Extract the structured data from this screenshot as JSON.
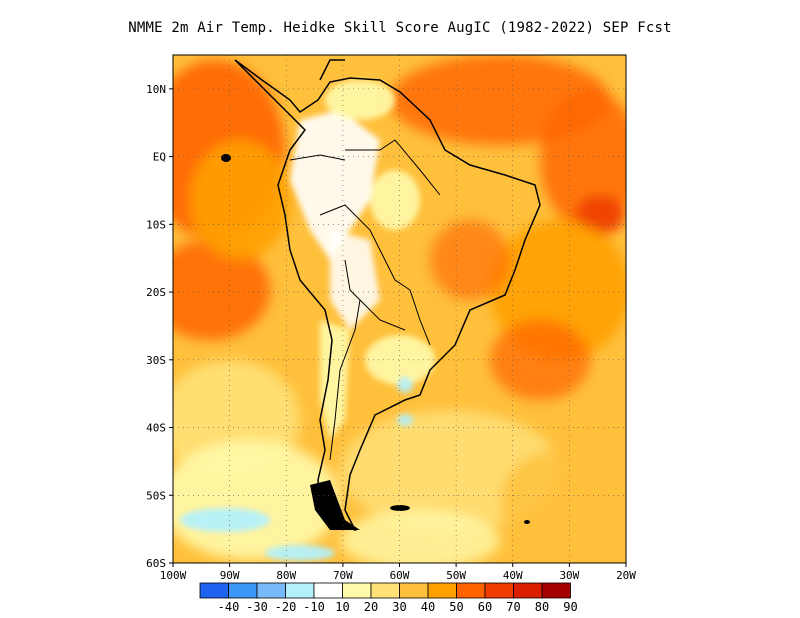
{
  "title": "NMME  2m Air Temp. Heidke Skill Score AugIC (1982-2022) SEP Fcst",
  "map": {
    "lon_range": [
      -100,
      -20
    ],
    "lat_range": [
      -60,
      15
    ],
    "lat_ticks": [
      "10N",
      "EQ",
      "10S",
      "20S",
      "30S",
      "40S",
      "50S",
      "60S"
    ],
    "lon_ticks": [
      "100W",
      "90W",
      "80W",
      "70W",
      "60W",
      "50W",
      "40W",
      "30W",
      "20W"
    ],
    "grid": "dotted",
    "coastline_color": "#000000"
  },
  "colorbar": {
    "labels": [
      "-40",
      "-30",
      "-20",
      "-10",
      "10",
      "20",
      "30",
      "40",
      "50",
      "60",
      "70",
      "80",
      "90"
    ],
    "colors": [
      "#1e64f0",
      "#3c96f5",
      "#78b9fa",
      "#b4f0fa",
      "#ffffff",
      "#fffaaa",
      "#ffe178",
      "#ffc03c",
      "#ffa000",
      "#ff6400",
      "#f03c00",
      "#dc1e00",
      "#a50000"
    ]
  }
}
